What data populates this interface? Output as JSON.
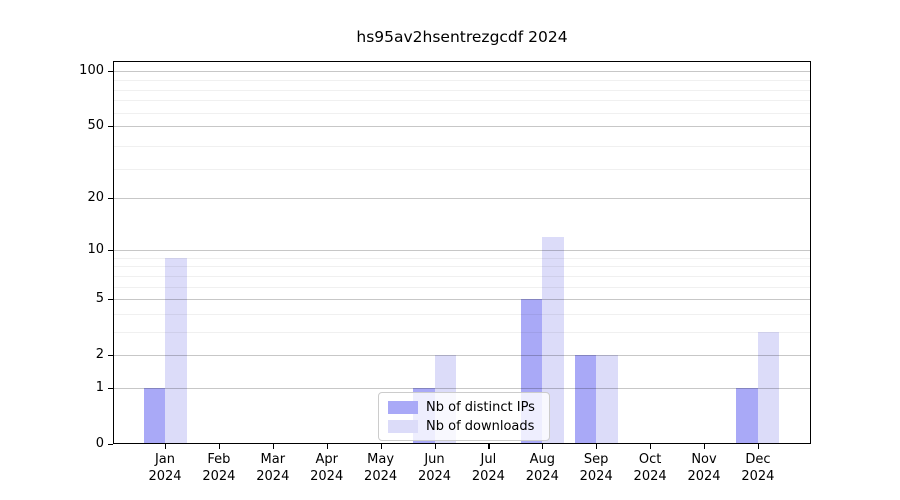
{
  "title": "hs95av2hsentrezgcdf 2024",
  "chart_data": {
    "type": "bar",
    "title": "hs95av2hsentrezgcdf 2024",
    "x_categories": [
      "Jan",
      "Feb",
      "Mar",
      "Apr",
      "May",
      "Jun",
      "Jul",
      "Aug",
      "Sep",
      "Oct",
      "Nov",
      "Dec"
    ],
    "x_year": "2024",
    "series": [
      {
        "name": "Nb of distinct IPs",
        "color": "#a9a9f7",
        "values": [
          1,
          0,
          0,
          0,
          0,
          1,
          0,
          5,
          2,
          0,
          0,
          1
        ]
      },
      {
        "name": "Nb of downloads",
        "color": "#dcdcf9",
        "values": [
          9,
          0,
          0,
          0,
          0,
          2,
          0,
          12,
          2,
          0,
          0,
          3
        ]
      }
    ],
    "y_scale": "log10(value+1)",
    "y_ticks": [
      0,
      1,
      2,
      5,
      10,
      20,
      50,
      100
    ],
    "y_minor_gridlines": [
      3,
      4,
      6,
      7,
      8,
      9,
      29,
      39,
      59,
      69,
      79,
      89
    ],
    "ylim": [
      0,
      113
    ],
    "grid": true,
    "legend_position": "bottom-center",
    "legend": [
      "Nb of distinct IPs",
      "Nb of downloads"
    ]
  }
}
